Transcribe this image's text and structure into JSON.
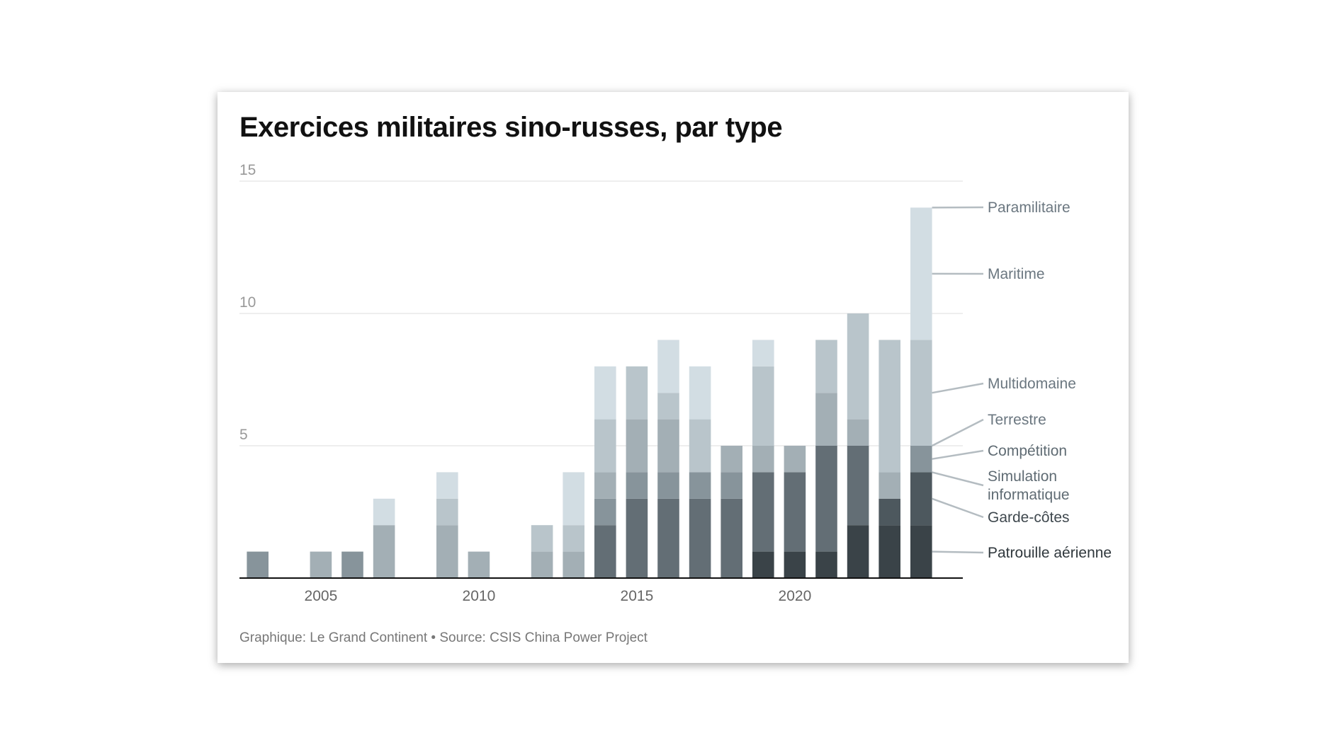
{
  "chart_title": "Exercices militaires sino-russes, par type",
  "footer": {
    "credit": "Graphique: Le Grand Continent",
    "separator": "•",
    "source": "Source: CSIS China Power Project"
  },
  "chart_data": {
    "type": "bar",
    "stacked": true,
    "title": "Exercices militaires sino-russes, par type",
    "xlabel": "",
    "ylabel": "",
    "ylim": [
      0,
      15
    ],
    "yticks": [
      5,
      10,
      15
    ],
    "xticks": [
      2005,
      2010,
      2015,
      2020
    ],
    "grid": true,
    "legend": "right, labels attached to last bar",
    "categories": [
      2003,
      2004,
      2005,
      2006,
      2007,
      2008,
      2009,
      2010,
      2011,
      2012,
      2013,
      2014,
      2015,
      2016,
      2017,
      2018,
      2019,
      2020,
      2021,
      2022,
      2023,
      2024
    ],
    "series": [
      {
        "name": "Patrouille aérienne",
        "color": "#3a4348",
        "values": [
          0,
          0,
          0,
          0,
          0,
          0,
          0,
          0,
          0,
          0,
          0,
          0,
          0,
          0,
          0,
          0,
          1,
          1,
          1,
          2,
          2,
          2
        ]
      },
      {
        "name": "Garde-côtes",
        "color": "#4d585e",
        "values": [
          0,
          0,
          0,
          0,
          0,
          0,
          0,
          0,
          0,
          0,
          0,
          0,
          0,
          0,
          0,
          0,
          0,
          0,
          0,
          0,
          1,
          2
        ]
      },
      {
        "name": "Simulation informatique",
        "color": "#636e75",
        "values": [
          0,
          0,
          0,
          0,
          0,
          0,
          0,
          0,
          0,
          0,
          0,
          2,
          3,
          3,
          3,
          3,
          3,
          3,
          4,
          3,
          0,
          0
        ]
      },
      {
        "name": "Compétition",
        "color": "#87949b",
        "values": [
          1,
          0,
          0,
          1,
          0,
          0,
          0,
          0,
          0,
          0,
          0,
          1,
          1,
          1,
          1,
          1,
          0,
          0,
          0,
          0,
          0,
          1
        ]
      },
      {
        "name": "Terrestre",
        "color": "#a3afb5",
        "values": [
          0,
          0,
          1,
          0,
          2,
          0,
          2,
          1,
          0,
          1,
          1,
          1,
          2,
          2,
          0,
          1,
          1,
          1,
          2,
          1,
          1,
          0
        ]
      },
      {
        "name": "Multidomaine",
        "color": "#b9c5cb",
        "values": [
          0,
          0,
          0,
          0,
          0,
          0,
          1,
          0,
          0,
          1,
          1,
          2,
          2,
          1,
          2,
          0,
          3,
          0,
          2,
          4,
          5,
          4
        ]
      },
      {
        "name": "Maritime",
        "color": "#d2dde3",
        "values": [
          0,
          0,
          0,
          0,
          1,
          0,
          1,
          0,
          0,
          0,
          2,
          2,
          0,
          2,
          2,
          0,
          1,
          0,
          0,
          0,
          0,
          5
        ]
      },
      {
        "name": "Paramilitaire",
        "color": "#b9c5cb",
        "values": [
          0,
          0,
          0,
          0,
          0,
          0,
          0,
          0,
          0,
          0,
          0,
          0,
          0,
          0,
          0,
          0,
          0,
          0,
          0,
          0,
          0,
          0
        ]
      }
    ],
    "legend_labels": [
      {
        "lines": [
          "Paramilitaire"
        ],
        "color": "#6b7780"
      },
      {
        "lines": [
          "Maritime"
        ],
        "color": "#6b7780"
      },
      {
        "lines": [
          "Multidomaine"
        ],
        "color": "#6b7780"
      },
      {
        "lines": [
          "Terrestre"
        ],
        "color": "#6b7780"
      },
      {
        "lines": [
          "Compétition"
        ],
        "color": "#5f6b73"
      },
      {
        "lines": [
          "Simulation",
          "informatique"
        ],
        "color": "#5f6b73"
      },
      {
        "lines": [
          "Garde-côtes"
        ],
        "color": "#3f484e"
      },
      {
        "lines": [
          "Patrouille aérienne"
        ],
        "color": "#2f373c"
      }
    ]
  }
}
